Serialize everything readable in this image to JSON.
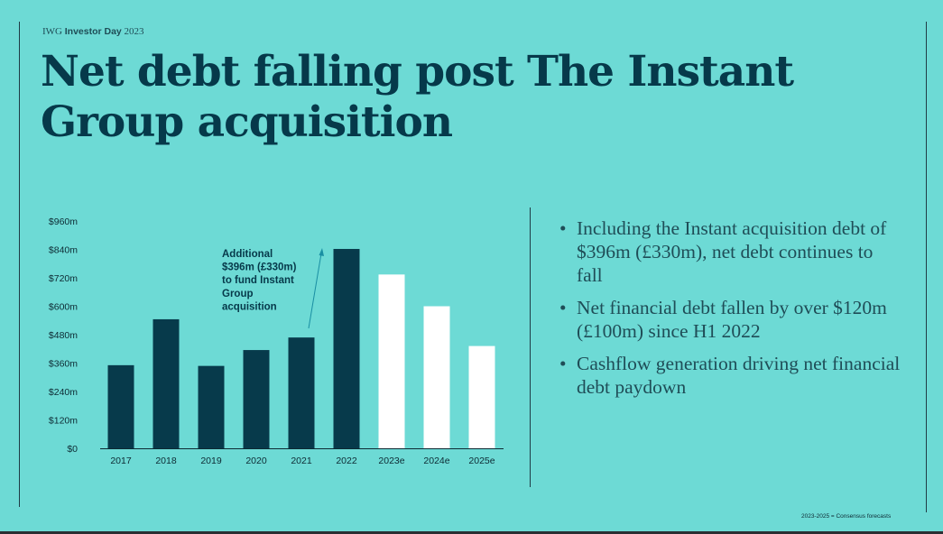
{
  "header": {
    "brand": "IWG",
    "event": "Investor Day",
    "year": "2023"
  },
  "title": "Net debt falling post The Instant Group acquisition",
  "chart_data": {
    "type": "bar",
    "categories": [
      "2017",
      "2018",
      "2019",
      "2020",
      "2021",
      "2022",
      "2023e",
      "2024e",
      "2025e"
    ],
    "series": [
      {
        "values": [
          351,
          545,
          348,
          415,
          468,
          842,
          734,
          600,
          432
        ]
      }
    ],
    "forecast_categories": [
      "2023e",
      "2024e",
      "2025e"
    ],
    "colors": {
      "actual": "#073a4b",
      "forecast": "#ffffff"
    },
    "yticks": [
      "$0",
      "$120m",
      "$240m",
      "$360m",
      "$480m",
      "$600m",
      "$720m",
      "$840m",
      "$960m"
    ],
    "ylim": [
      0,
      960
    ],
    "annotation": {
      "lines": [
        "Additional",
        "$396m (£330m)",
        "to fund Instant",
        "Group",
        "acquisition"
      ],
      "arrow_color": "#1a8fa3"
    }
  },
  "bullets": [
    "Including the Instant acquisition debt of $396m (£330m), net debt continues to fall",
    "Net financial debt fallen by over $120m (£100m) since H1 2022",
    "Cashflow generation driving net financial debt paydown"
  ],
  "footnote": "2023-2025 = Consensus forecasts"
}
